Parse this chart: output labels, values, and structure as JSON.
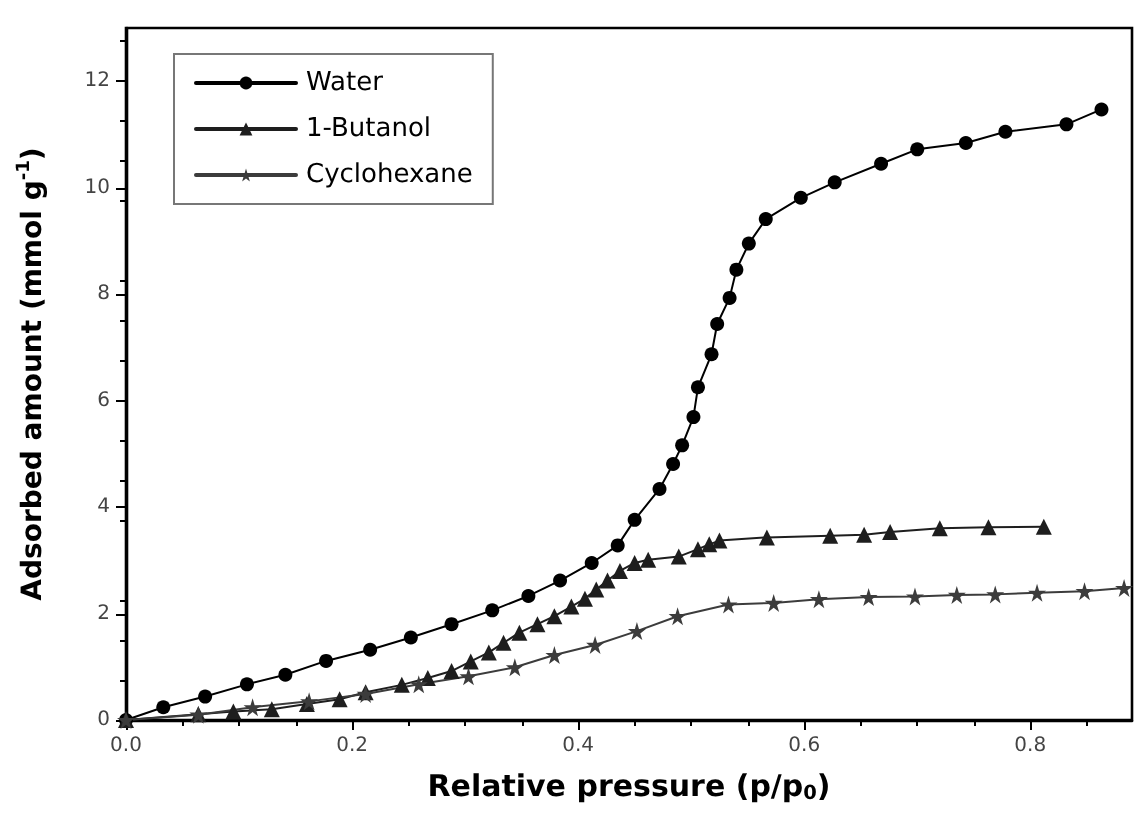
{
  "chart_data": {
    "type": "line",
    "xlabel": "Relative pressure (p/p$_{0}$)",
    "ylabel": "Adsorbed amount (mmol g$^{-1}$)",
    "xlim": [
      0,
      0.89
    ],
    "xticks": [
      {
        "value": 0,
        "label": "0.0"
      },
      0.2,
      0.4,
      0.6,
      0.8
    ],
    "ylim": [
      0,
      13
    ],
    "yticks": [
      0,
      2,
      4,
      6,
      8,
      10,
      12
    ],
    "grid": false,
    "legend": "top left",
    "line_style": "solid",
    "series": [
      {
        "name": "Water",
        "color": "#000000",
        "marker": "circle",
        "x": [
          0,
          0.033,
          0.07,
          0.107,
          0.141,
          0.177,
          0.216,
          0.252,
          0.288,
          0.324,
          0.356,
          0.384,
          0.412,
          0.435,
          0.45,
          0.472,
          0.484,
          0.492,
          0.502,
          0.506,
          0.518,
          0.523,
          0.534,
          0.54,
          0.551,
          0.566,
          0.597,
          0.627,
          0.668,
          0.7,
          0.743,
          0.778,
          0.832,
          0.863
        ],
        "values": [
          0,
          0.24,
          0.44,
          0.67,
          0.85,
          1.11,
          1.32,
          1.55,
          1.8,
          2.06,
          2.33,
          2.62,
          2.95,
          3.28,
          3.76,
          4.34,
          4.81,
          5.16,
          5.69,
          6.25,
          6.87,
          7.44,
          7.93,
          8.46,
          8.95,
          9.41,
          9.81,
          10.1,
          10.45,
          10.72,
          10.84,
          11.05,
          11.19,
          11.47
        ]
      },
      {
        "name": "1-Butanol",
        "color": "#1e1e1e",
        "marker": "triangle",
        "x": [
          0,
          0.064,
          0.095,
          0.129,
          0.16,
          0.189,
          0.212,
          0.244,
          0.267,
          0.288,
          0.305,
          0.321,
          0.334,
          0.348,
          0.364,
          0.379,
          0.394,
          0.406,
          0.416,
          0.426,
          0.437,
          0.45,
          0.462,
          0.489,
          0.506,
          0.516,
          0.525,
          0.567,
          0.623,
          0.653,
          0.676,
          0.72,
          0.763,
          0.812
        ],
        "values": [
          0,
          0.11,
          0.16,
          0.2,
          0.3,
          0.39,
          0.52,
          0.66,
          0.79,
          0.92,
          1.1,
          1.27,
          1.45,
          1.64,
          1.8,
          1.95,
          2.13,
          2.28,
          2.45,
          2.62,
          2.8,
          2.95,
          3.01,
          3.07,
          3.21,
          3.3,
          3.37,
          3.43,
          3.46,
          3.48,
          3.53,
          3.6,
          3.62,
          3.63
        ]
      },
      {
        "name": "Cyclohexane",
        "color": "#3c3c3c",
        "marker": "star",
        "x": [
          0,
          0.064,
          0.112,
          0.162,
          0.212,
          0.259,
          0.303,
          0.344,
          0.379,
          0.415,
          0.452,
          0.488,
          0.533,
          0.573,
          0.613,
          0.657,
          0.698,
          0.735,
          0.769,
          0.806,
          0.848,
          0.883
        ],
        "values": [
          0,
          0.1,
          0.24,
          0.35,
          0.49,
          0.67,
          0.82,
          0.99,
          1.22,
          1.41,
          1.67,
          1.95,
          2.17,
          2.2,
          2.27,
          2.31,
          2.32,
          2.35,
          2.36,
          2.39,
          2.42,
          2.48
        ]
      }
    ]
  }
}
